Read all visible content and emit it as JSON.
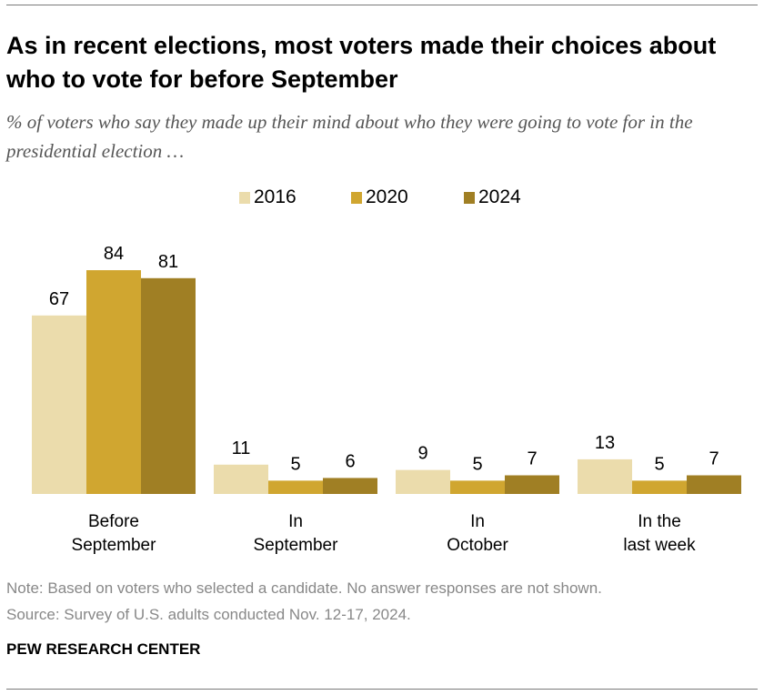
{
  "title": "As in recent elections, most voters made their choices about who to vote for before September",
  "subtitle": "% of voters who say they made up their mind about who they were going to vote for in the presidential election …",
  "note": "Note: Based on voters who selected a candidate. No answer responses are not shown.",
  "source": "Source: Survey of U.S. adults conducted Nov. 12-17, 2024.",
  "brand": "PEW RESEARCH CENTER",
  "chart_data": {
    "type": "bar",
    "categories": [
      "Before\nSeptember",
      "In\nSeptember",
      "In\nOctober",
      "In the\nlast week"
    ],
    "series": [
      {
        "name": "2016",
        "color": "#EBDCAC",
        "values": [
          67,
          11,
          9,
          13
        ]
      },
      {
        "name": "2020",
        "color": "#D0A630",
        "values": [
          84,
          5,
          5,
          5
        ]
      },
      {
        "name": "2024",
        "color": "#A07F24",
        "values": [
          81,
          6,
          7,
          7
        ]
      }
    ],
    "legend": "top",
    "grid": false
  }
}
